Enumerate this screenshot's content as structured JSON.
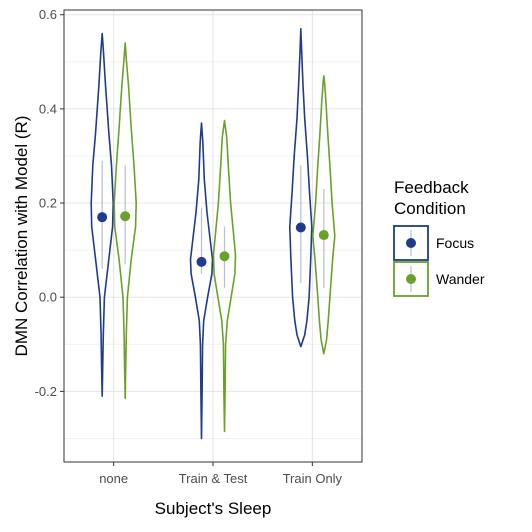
{
  "chart_data": {
    "type": "violin",
    "xlabel": "Subject's Sleep",
    "ylabel": "DMN Correlation with Model (R)",
    "ylim": [
      -0.35,
      0.61
    ],
    "yticks": [
      -0.2,
      0.0,
      0.2,
      0.4,
      0.6
    ],
    "ytick_labels": [
      "-0.2",
      "0.0",
      "0.2",
      "0.4",
      "0.6"
    ],
    "categories": [
      "none",
      "Train & Test",
      "Train Only"
    ],
    "grid": true,
    "legend_title": "Feedback\nCondition",
    "legend_placement": "right",
    "series": [
      {
        "name": "Focus",
        "color": "#1f3a8f",
        "groups": [
          {
            "category": "none",
            "min": -0.21,
            "max": 0.56,
            "mean": 0.17,
            "ci": [
              0.06,
              0.29
            ],
            "profile": [
              [
                -0.21,
                0.0
              ],
              [
                -0.15,
                0.05
              ],
              [
                -0.08,
                0.1
              ],
              [
                0.0,
                0.2
              ],
              [
                0.08,
                0.6
              ],
              [
                0.15,
                0.95
              ],
              [
                0.2,
                1.0
              ],
              [
                0.28,
                0.85
              ],
              [
                0.35,
                0.6
              ],
              [
                0.45,
                0.3
              ],
              [
                0.52,
                0.12
              ],
              [
                0.56,
                0.0
              ]
            ]
          },
          {
            "category": "Train & Test",
            "min": -0.3,
            "max": 0.37,
            "mean": 0.075,
            "ci": [
              0.05,
              0.19
            ],
            "profile": [
              [
                -0.3,
                0.0
              ],
              [
                -0.2,
                0.05
              ],
              [
                -0.1,
                0.1
              ],
              [
                -0.05,
                0.2
              ],
              [
                0.0,
                0.55
              ],
              [
                0.05,
                0.95
              ],
              [
                0.08,
                1.0
              ],
              [
                0.12,
                0.8
              ],
              [
                0.18,
                0.5
              ],
              [
                0.25,
                0.25
              ],
              [
                0.33,
                0.12
              ],
              [
                0.37,
                0.0
              ]
            ]
          },
          {
            "category": "Train Only",
            "min": -0.105,
            "max": 0.57,
            "mean": 0.148,
            "ci": [
              0.03,
              0.28
            ],
            "profile": [
              [
                -0.105,
                0.0
              ],
              [
                -0.08,
                0.35
              ],
              [
                -0.05,
                0.55
              ],
              [
                0.0,
                0.75
              ],
              [
                0.08,
                0.9
              ],
              [
                0.15,
                1.0
              ],
              [
                0.22,
                0.8
              ],
              [
                0.3,
                0.6
              ],
              [
                0.38,
                0.35
              ],
              [
                0.45,
                0.2
              ],
              [
                0.52,
                0.08
              ],
              [
                0.57,
                0.0
              ]
            ]
          }
        ]
      },
      {
        "name": "Wander",
        "color": "#6aa12a",
        "groups": [
          {
            "category": "none",
            "min": -0.215,
            "max": 0.54,
            "mean": 0.172,
            "ci": [
              0.07,
              0.28
            ],
            "profile": [
              [
                -0.215,
                0.0
              ],
              [
                -0.15,
                0.05
              ],
              [
                -0.08,
                0.1
              ],
              [
                0.0,
                0.2
              ],
              [
                0.08,
                0.55
              ],
              [
                0.15,
                0.95
              ],
              [
                0.2,
                1.0
              ],
              [
                0.28,
                0.8
              ],
              [
                0.36,
                0.55
              ],
              [
                0.45,
                0.3
              ],
              [
                0.5,
                0.12
              ],
              [
                0.54,
                0.0
              ]
            ]
          },
          {
            "category": "Train & Test",
            "min": -0.285,
            "max": 0.375,
            "mean": 0.087,
            "ci": [
              0.02,
              0.15
            ],
            "profile": [
              [
                -0.285,
                0.0
              ],
              [
                -0.2,
                0.05
              ],
              [
                -0.1,
                0.1
              ],
              [
                -0.05,
                0.25
              ],
              [
                0.0,
                0.6
              ],
              [
                0.05,
                0.95
              ],
              [
                0.09,
                1.0
              ],
              [
                0.14,
                0.8
              ],
              [
                0.2,
                0.55
              ],
              [
                0.28,
                0.35
              ],
              [
                0.34,
                0.2
              ],
              [
                0.375,
                0.0
              ]
            ]
          },
          {
            "category": "Train Only",
            "min": -0.12,
            "max": 0.47,
            "mean": 0.132,
            "ci": [
              0.02,
              0.23
            ],
            "profile": [
              [
                -0.12,
                0.0
              ],
              [
                -0.09,
                0.25
              ],
              [
                -0.05,
                0.4
              ],
              [
                0.0,
                0.55
              ],
              [
                0.08,
                0.8
              ],
              [
                0.13,
                1.0
              ],
              [
                0.2,
                0.75
              ],
              [
                0.28,
                0.55
              ],
              [
                0.35,
                0.35
              ],
              [
                0.42,
                0.18
              ],
              [
                0.46,
                0.05
              ],
              [
                0.47,
                0.0
              ]
            ]
          }
        ]
      }
    ]
  }
}
